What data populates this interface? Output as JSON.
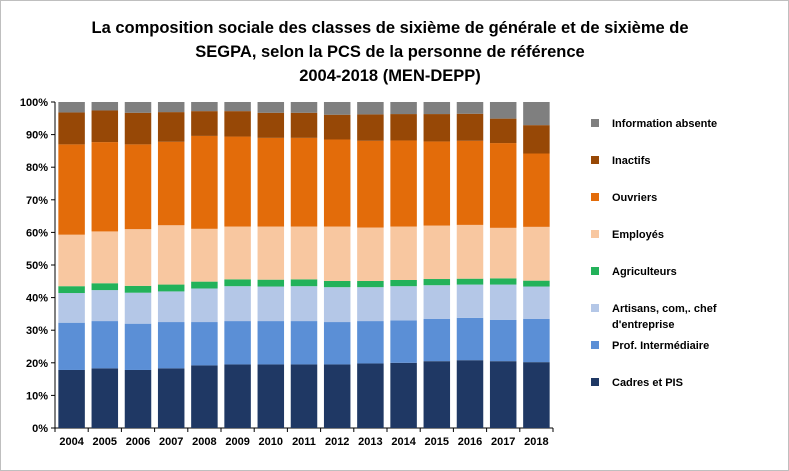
{
  "title_lines": [
    "La composition sociale des classes de sixième de générale et de sixième de",
    "SEGPA,  selon la PCS de la personne de référence",
    "2004-2018 (MEN-DEPP)"
  ],
  "chart_data": {
    "type": "bar",
    "stacked": true,
    "categories": [
      "2004",
      "2005",
      "2006",
      "2007",
      "2008",
      "2009",
      "2010",
      "2011",
      "2012",
      "2013",
      "2014",
      "2015",
      "2016",
      "2017",
      "2018"
    ],
    "y_ticks": [
      "0%",
      "10%",
      "20%",
      "30%",
      "40%",
      "50%",
      "60%",
      "70%",
      "80%",
      "90%",
      "100%"
    ],
    "ylim": [
      0,
      100
    ],
    "legend_position": "right",
    "series": [
      {
        "name": "Cadres et PIS",
        "color": "#1f3864",
        "values": [
          17.8,
          18.3,
          17.8,
          18.3,
          19.2,
          19.5,
          19.5,
          19.5,
          19.5,
          19.8,
          20.0,
          20.5,
          20.8,
          20.5,
          20.2
        ]
      },
      {
        "name": "Prof. Intermédiaire",
        "color": "#5b8fd6",
        "values": [
          14.5,
          14.5,
          14.2,
          14.2,
          13.3,
          13.3,
          13.3,
          13.3,
          13.0,
          13.0,
          13.0,
          13.0,
          13.0,
          12.7,
          13.3
        ]
      },
      {
        "name": "Artisans, com,. chef d'entreprise",
        "color": "#b4c7e7",
        "values": [
          9.1,
          9.5,
          9.5,
          9.4,
          10.3,
          10.7,
          10.6,
          10.7,
          10.7,
          10.4,
          10.5,
          10.3,
          10.2,
          10.8,
          9.9
        ]
      },
      {
        "name": "Agriculteurs",
        "color": "#23b25a",
        "values": [
          2.1,
          2.1,
          2.1,
          2.1,
          2.1,
          2.1,
          2.1,
          2.1,
          1.9,
          1.9,
          1.9,
          1.9,
          1.8,
          1.9,
          1.8
        ]
      },
      {
        "name": "Employés",
        "color": "#f8c7a0",
        "values": [
          15.8,
          15.9,
          17.4,
          18.2,
          16.2,
          16.2,
          16.3,
          16.2,
          16.7,
          16.4,
          16.4,
          16.4,
          16.5,
          15.5,
          16.5
        ]
      },
      {
        "name": "Ouvriers",
        "color": "#e36c0a",
        "values": [
          27.7,
          27.4,
          26.0,
          25.6,
          28.5,
          27.6,
          27.2,
          27.2,
          26.7,
          26.6,
          26.4,
          25.8,
          25.8,
          26.0,
          22.5
        ]
      },
      {
        "name": "Inactifs",
        "color": "#974806",
        "values": [
          9.8,
          9.7,
          9.7,
          9.1,
          7.6,
          7.8,
          7.7,
          7.7,
          7.6,
          8.1,
          8.1,
          8.4,
          8.3,
          7.5,
          8.7
        ]
      },
      {
        "name": "Information absente",
        "color": "#7f7f7f",
        "values": [
          3.2,
          2.6,
          3.3,
          3.1,
          2.8,
          2.8,
          3.3,
          3.3,
          3.9,
          3.8,
          3.7,
          3.7,
          3.6,
          5.1,
          7.1
        ]
      }
    ]
  }
}
